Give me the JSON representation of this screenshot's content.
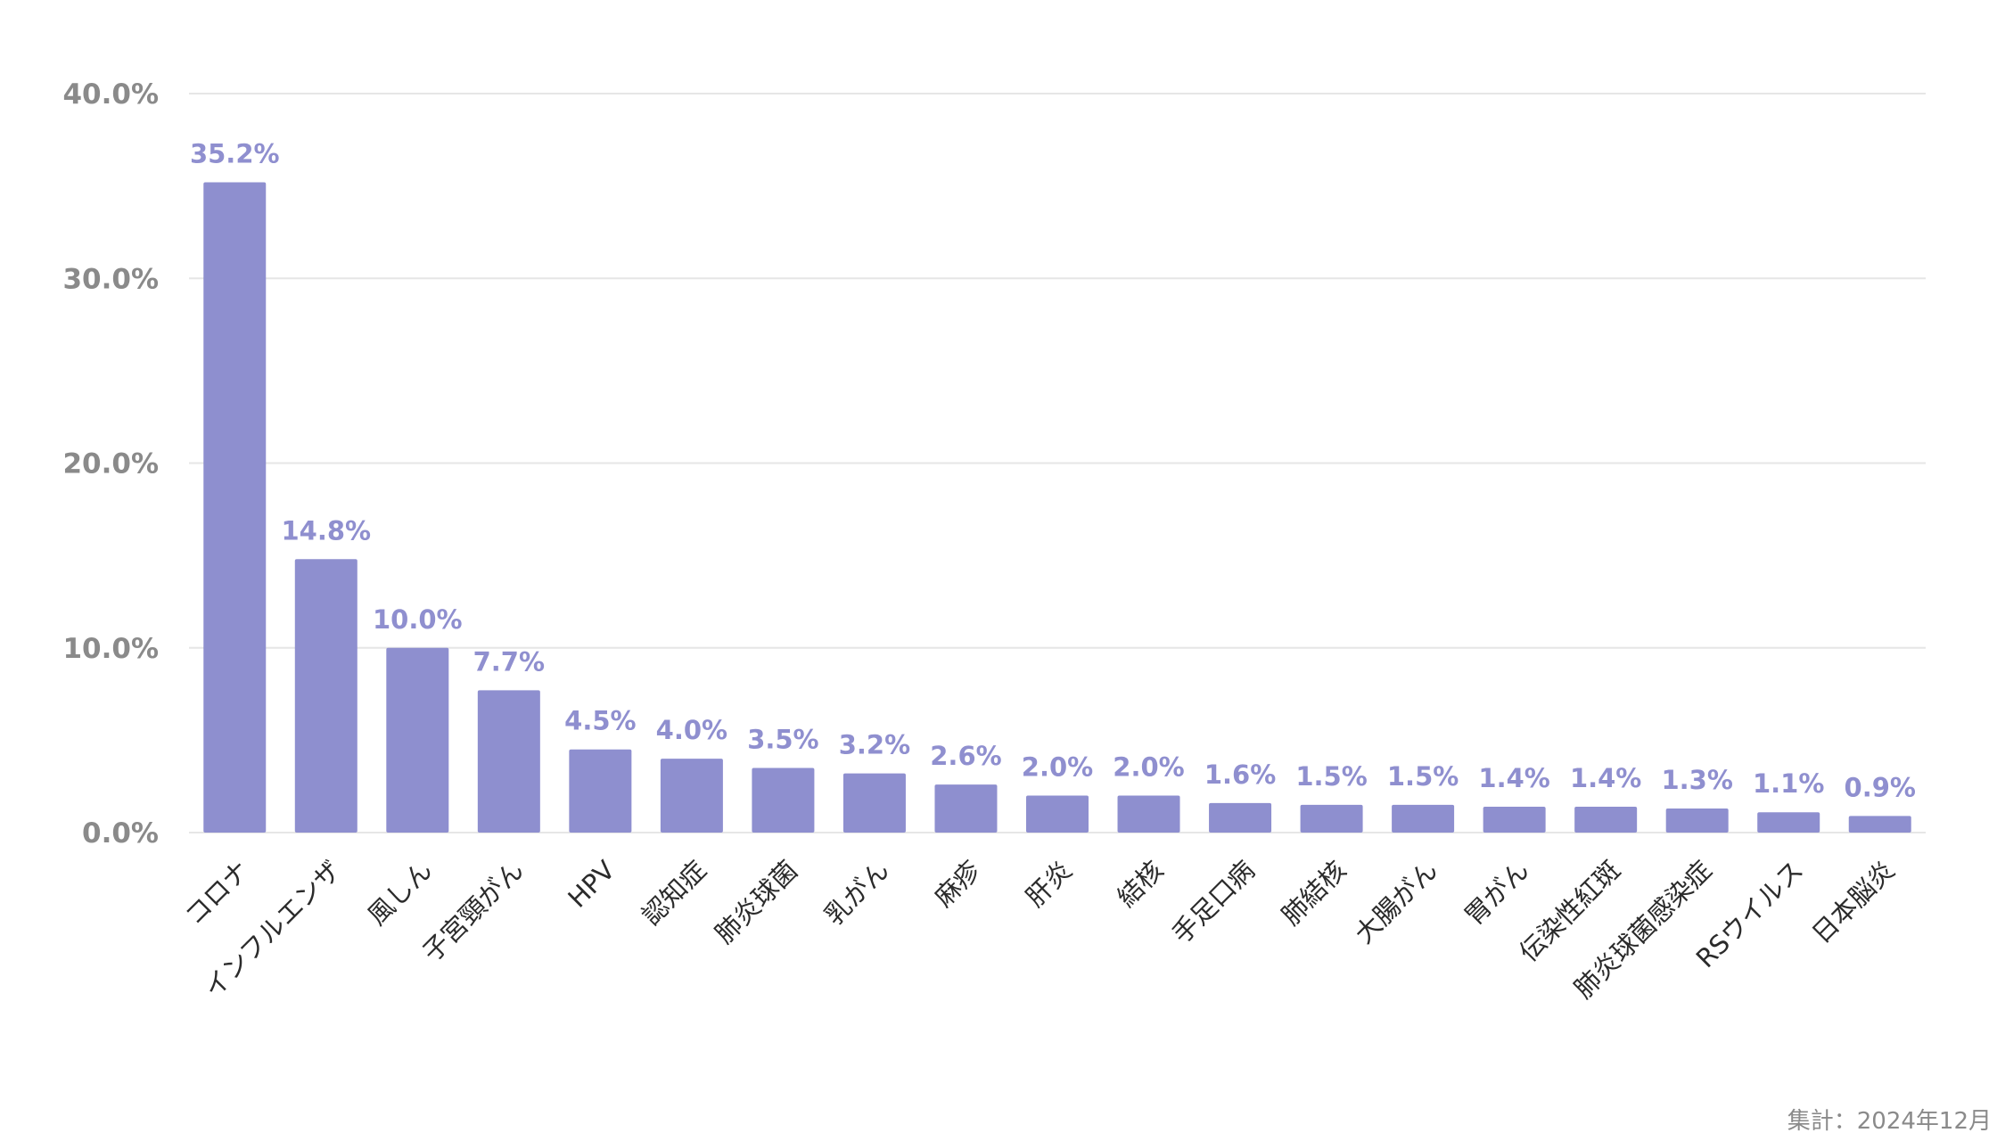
{
  "chart_data": {
    "type": "bar",
    "categories": [
      "コロナ",
      "インフルエンザ",
      "風しん",
      "子宮頸がん",
      "HPV",
      "認知症",
      "肺炎球菌",
      "乳がん",
      "麻疹",
      "肝炎",
      "結核",
      "手足口病",
      "肺結核",
      "大腸がん",
      "胃がん",
      "伝染性紅斑",
      "肺炎球菌感染症",
      "RSウイルス",
      "日本脳炎"
    ],
    "values": [
      35.2,
      14.8,
      10.0,
      7.7,
      4.5,
      4.0,
      3.5,
      3.2,
      2.6,
      2.0,
      2.0,
      1.6,
      1.5,
      1.5,
      1.4,
      1.4,
      1.3,
      1.1,
      0.9
    ],
    "value_labels": [
      "35.2%",
      "14.8%",
      "10.0%",
      "7.7%",
      "4.5%",
      "4.0%",
      "3.5%",
      "3.2%",
      "2.6%",
      "2.0%",
      "2.0%",
      "1.6%",
      "1.5%",
      "1.5%",
      "1.4%",
      "1.4%",
      "1.3%",
      "1.1%",
      "0.9%"
    ],
    "yticks": [
      "0.0%",
      "10.0%",
      "20.0%",
      "30.0%",
      "40.0%"
    ],
    "ylim": [
      0,
      40
    ],
    "grid": true,
    "bar_color": "#8e8fcf",
    "label_color": "#8f8fcf"
  },
  "footnote": "集計：2024年12月"
}
